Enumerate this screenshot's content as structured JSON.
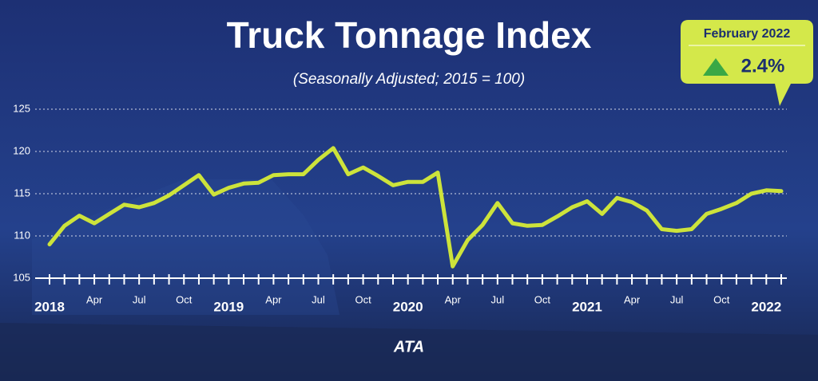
{
  "chart_data": {
    "type": "line",
    "title": "Truck Tonnage Index",
    "subtitle": "(Seasonally Adjusted; 2015 = 100)",
    "callout": {
      "label": "February 2022",
      "value": "2.4%"
    },
    "logo": "ATA",
    "categories": [
      "2018",
      null,
      null,
      "Apr",
      null,
      null,
      "Jul",
      null,
      null,
      "Oct",
      null,
      null,
      "2019",
      null,
      null,
      "Apr",
      null,
      null,
      "Jul",
      null,
      null,
      "Oct",
      null,
      null,
      "2020",
      null,
      null,
      "Apr",
      null,
      null,
      "Jul",
      null,
      null,
      "Oct",
      null,
      null,
      "2021",
      null,
      null,
      "Apr",
      null,
      null,
      "Jul",
      null,
      null,
      "Oct",
      null,
      null,
      "2022",
      null
    ],
    "series": [
      {
        "name": "Truck Tonnage Index",
        "color": "#cde33b",
        "values": [
          109.0,
          111.2,
          112.4,
          111.5,
          112.6,
          113.7,
          113.4,
          113.9,
          114.8,
          116.0,
          117.2,
          114.9,
          115.7,
          116.2,
          116.3,
          117.2,
          117.3,
          117.3,
          119.0,
          120.4,
          117.3,
          118.1,
          117.1,
          116.0,
          116.4,
          116.4,
          117.5,
          106.4,
          109.5,
          111.3,
          113.9,
          111.5,
          111.2,
          111.3,
          112.3,
          113.4,
          114.1,
          112.6,
          114.5,
          114.0,
          113.0,
          110.8,
          110.6,
          110.8,
          112.6,
          113.2,
          113.9,
          115.0,
          115.4,
          115.3
        ]
      }
    ],
    "ylim": [
      105,
      125
    ],
    "yticks": [
      105,
      110,
      115,
      120,
      125
    ],
    "grid": true
  }
}
